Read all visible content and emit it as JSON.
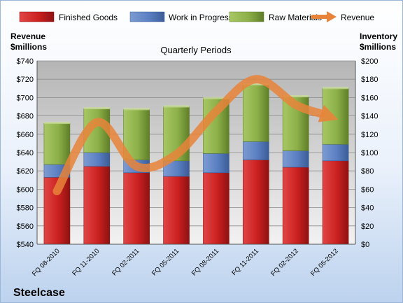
{
  "chart_data": {
    "type": "bar",
    "title": "Quarterly Periods",
    "company": "Steelcase",
    "left_axis_label_lines": [
      "Revenue",
      "$millions"
    ],
    "right_axis_label_lines": [
      "Inventory",
      "$millions"
    ],
    "categories": [
      "FQ 08-2010",
      "FQ 11-2010",
      "FQ 02-2011",
      "FQ 05-2011",
      "FQ 08-2011",
      "FQ 11-2011",
      "FQ 02-2012",
      "FQ 05-2012"
    ],
    "left_axis": {
      "min": 540,
      "max": 740,
      "step": 20,
      "tick_labels": [
        "$540",
        "$560",
        "$580",
        "$600",
        "$620",
        "$640",
        "$660",
        "$680",
        "$700",
        "$720",
        "$740"
      ]
    },
    "right_axis": {
      "min": 0,
      "max": 200,
      "step": 20,
      "tick_labels": [
        "$0",
        "$20",
        "$40",
        "$60",
        "$80",
        "$100",
        "$120",
        "$140",
        "$160",
        "$180",
        "$200"
      ]
    },
    "grid": true,
    "legend_position": "top",
    "series": [
      {
        "name": "Finished Goods",
        "type": "bar",
        "axis": "right",
        "stacked": true,
        "color": "#cc2222",
        "values": [
          73,
          85,
          78,
          74,
          78,
          92,
          84,
          91
        ]
      },
      {
        "name": "Work in Progress",
        "type": "bar",
        "axis": "right",
        "stacked": true,
        "color": "#5b82c4",
        "values": [
          14,
          15,
          14,
          17,
          21,
          20,
          18,
          18
        ]
      },
      {
        "name": "Raw Materials",
        "type": "bar",
        "axis": "right",
        "stacked": true,
        "color": "#8fb34a",
        "values": [
          45,
          48,
          55,
          59,
          60,
          62,
          59,
          61
        ]
      },
      {
        "name": "Revenue",
        "type": "line",
        "axis": "left",
        "color": "#e8843a",
        "values": [
          598,
          673,
          625,
          638,
          685,
          720,
          692,
          677
        ]
      }
    ]
  }
}
